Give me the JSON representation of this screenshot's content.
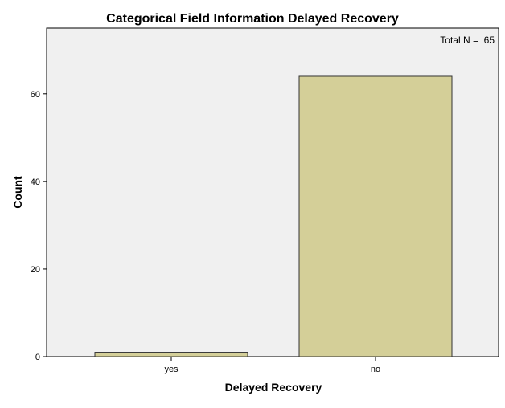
{
  "chart_data": {
    "type": "bar",
    "title": "Categorical Field Information Delayed Recovery",
    "xlabel": "Delayed Recovery",
    "ylabel": "Count",
    "categories": [
      "yes",
      "no"
    ],
    "values": [
      1,
      64
    ],
    "ylim": [
      0,
      75
    ],
    "yticks": [
      0,
      20,
      40,
      60
    ],
    "annotation": "Total N =  65",
    "grid": false,
    "legend": "none",
    "colors": {
      "bar_fill": "#d4cf98",
      "bar_stroke": "#333333",
      "plot_background": "#f0f0f0",
      "frame": "#000000"
    }
  }
}
